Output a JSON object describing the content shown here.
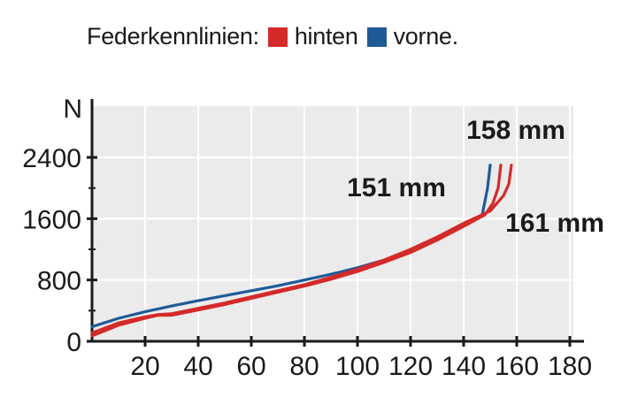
{
  "legend": {
    "title": "Federkennlinien:",
    "items": [
      {
        "label": "hinten",
        "color": "#d42a2a"
      },
      {
        "label": "vorne.",
        "color": "#1f5a96"
      }
    ]
  },
  "chart_data": {
    "type": "line",
    "ylabel": "N",
    "xlabel": "",
    "xlim": [
      0,
      180
    ],
    "ylim": [
      0,
      2400
    ],
    "x_ticks": [
      20,
      40,
      60,
      80,
      100,
      120,
      140,
      160,
      180
    ],
    "y_ticks": [
      0,
      800,
      1600,
      2400
    ],
    "grid": true,
    "plot_background": "#ebebeb",
    "series": [
      {
        "name": "vorne.",
        "color": "#1f5a96",
        "points": [
          [
            0,
            190
          ],
          [
            10,
            300
          ],
          [
            20,
            385
          ],
          [
            30,
            460
          ],
          [
            40,
            530
          ],
          [
            50,
            595
          ],
          [
            60,
            660
          ],
          [
            70,
            725
          ],
          [
            80,
            800
          ],
          [
            90,
            875
          ],
          [
            100,
            960
          ],
          [
            110,
            1060
          ],
          [
            120,
            1180
          ],
          [
            130,
            1330
          ],
          [
            140,
            1510
          ],
          [
            147,
            1650
          ],
          [
            149,
            2000
          ],
          [
            150,
            2300
          ]
        ]
      },
      {
        "name": "hinten",
        "color": "#d42a2a",
        "points": [
          [
            0,
            70
          ],
          [
            10,
            210
          ],
          [
            20,
            300
          ],
          [
            25,
            340
          ],
          [
            30,
            340
          ],
          [
            40,
            410
          ],
          [
            50,
            480
          ],
          [
            60,
            560
          ],
          [
            70,
            640
          ],
          [
            80,
            720
          ],
          [
            90,
            810
          ],
          [
            100,
            910
          ],
          [
            110,
            1030
          ],
          [
            120,
            1160
          ],
          [
            130,
            1320
          ],
          [
            140,
            1500
          ],
          [
            148,
            1650
          ],
          [
            151,
            1800
          ],
          [
            153,
            2000
          ],
          [
            154,
            2300
          ]
        ]
      },
      {
        "name": "hinten",
        "color": "#d42a2a",
        "points": [
          [
            0,
            110
          ],
          [
            10,
            240
          ],
          [
            20,
            320
          ],
          [
            25,
            350
          ],
          [
            30,
            360
          ],
          [
            40,
            430
          ],
          [
            50,
            500
          ],
          [
            60,
            580
          ],
          [
            70,
            660
          ],
          [
            80,
            740
          ],
          [
            90,
            835
          ],
          [
            100,
            940
          ],
          [
            110,
            1060
          ],
          [
            120,
            1200
          ],
          [
            130,
            1360
          ],
          [
            140,
            1540
          ],
          [
            150,
            1700
          ],
          [
            155,
            1900
          ],
          [
            157,
            2050
          ],
          [
            158,
            2300
          ]
        ]
      }
    ],
    "annotations": [
      "158 mm",
      "151 mm",
      "161 mm"
    ]
  }
}
